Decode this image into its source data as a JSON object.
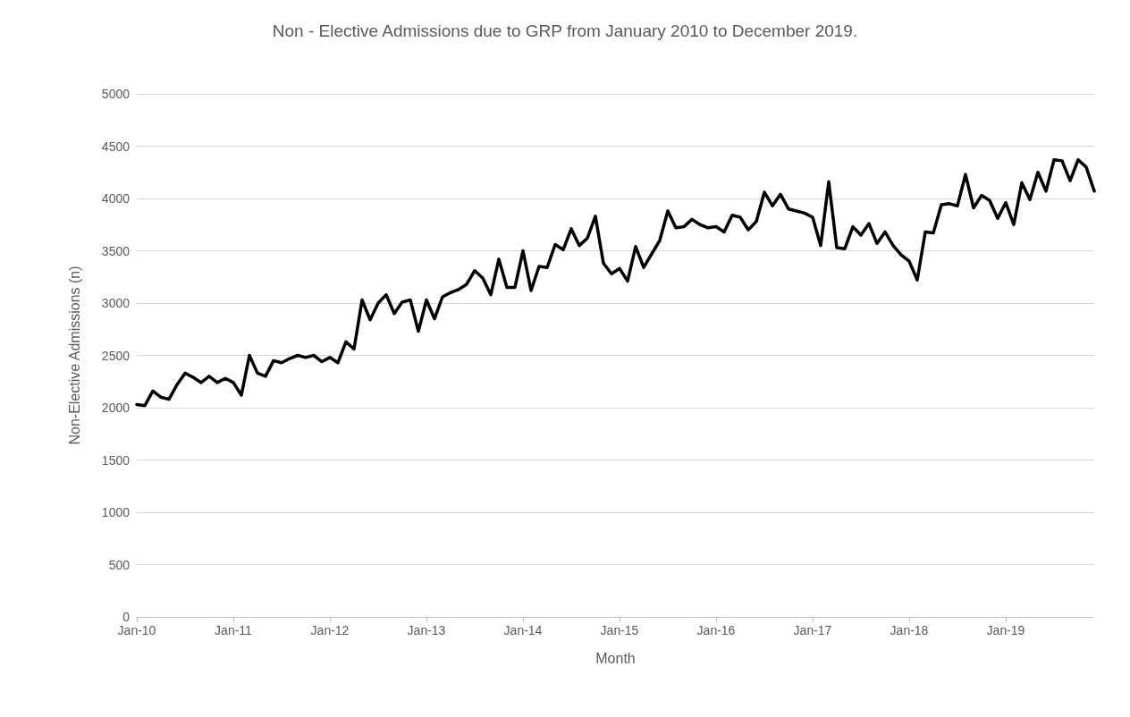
{
  "chart_data": {
    "type": "line",
    "title": "Non - Elective Admissions due to GRP from January 2010 to December 2019.",
    "xlabel": "Month",
    "ylabel": "Non-Elective Admissions (n)",
    "categories": [
      "Jan-10",
      null,
      null,
      null,
      null,
      null,
      null,
      null,
      null,
      null,
      null,
      null,
      "Jan-11",
      null,
      null,
      null,
      null,
      null,
      null,
      null,
      null,
      null,
      null,
      null,
      "Jan-12",
      null,
      null,
      null,
      null,
      null,
      null,
      null,
      null,
      null,
      null,
      null,
      "Jan-13",
      null,
      null,
      null,
      null,
      null,
      null,
      null,
      null,
      null,
      null,
      null,
      "Jan-14",
      null,
      null,
      null,
      null,
      null,
      null,
      null,
      null,
      null,
      null,
      null,
      "Jan-15",
      null,
      null,
      null,
      null,
      null,
      null,
      null,
      null,
      null,
      null,
      null,
      "Jan-16",
      null,
      null,
      null,
      null,
      null,
      null,
      null,
      null,
      null,
      null,
      null,
      "Jan-17",
      null,
      null,
      null,
      null,
      null,
      null,
      null,
      null,
      null,
      null,
      null,
      "Jan-18",
      null,
      null,
      null,
      null,
      null,
      null,
      null,
      null,
      null,
      null,
      null,
      "Jan-19",
      null,
      null,
      null,
      null,
      null,
      null,
      null,
      null,
      null,
      null,
      null
    ],
    "series": [
      {
        "color": "#000000",
        "values": [
          2030,
          2020,
          2160,
          2100,
          2080,
          2220,
          2330,
          2290,
          2240,
          2300,
          2240,
          2280,
          2240,
          2120,
          2500,
          2330,
          2300,
          2450,
          2430,
          2470,
          2500,
          2480,
          2500,
          2440,
          2480,
          2430,
          2630,
          2560,
          3030,
          2840,
          3000,
          3080,
          2900,
          3010,
          3030,
          2730,
          3030,
          2850,
          3060,
          3100,
          3130,
          3180,
          3310,
          3240,
          3080,
          3420,
          3150,
          3150,
          3500,
          3120,
          3350,
          3340,
          3560,
          3510,
          3710,
          3550,
          3620,
          3830,
          3380,
          3280,
          3330,
          3210,
          3540,
          3340,
          3470,
          3600,
          3880,
          3720,
          3730,
          3800,
          3750,
          3720,
          3730,
          3680,
          3840,
          3820,
          3700,
          3780,
          4060,
          3930,
          4040,
          3900,
          3880,
          3860,
          3820,
          3550,
          4160,
          3530,
          3520,
          3730,
          3650,
          3760,
          3570,
          3680,
          3550,
          3460,
          3400,
          3220,
          3680,
          3670,
          3940,
          3950,
          3930,
          4230,
          3910,
          4030,
          3980,
          3810,
          3960,
          3750,
          4150,
          3990,
          4250,
          4070,
          4370,
          4360,
          4170,
          4370,
          4300,
          4070
        ]
      }
    ],
    "ylim": [
      0,
      5000
    ],
    "yticks": [
      0,
      500,
      1000,
      1500,
      2000,
      2500,
      3000,
      3500,
      4000,
      4500,
      5000
    ],
    "grid": "y",
    "marker": "none",
    "line_style": "solid"
  }
}
